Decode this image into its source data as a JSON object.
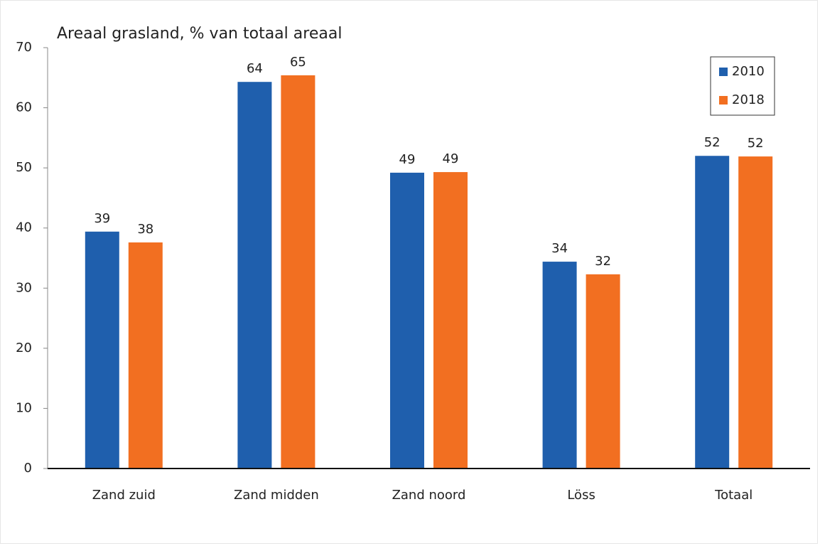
{
  "chart_data": {
    "type": "bar",
    "title": "Areaal grasland, % van totaal areaal",
    "categories": [
      "Zand zuid",
      "Zand midden",
      "Zand noord",
      "Löss",
      "Totaal"
    ],
    "series": [
      {
        "name": "2010",
        "color": "#1f5fad",
        "values": [
          39.4,
          64.3,
          49.2,
          34.4,
          52.0
        ],
        "value_labels": [
          "39",
          "64",
          "49",
          "34",
          "52"
        ]
      },
      {
        "name": "2018",
        "color": "#f26f21",
        "values": [
          37.6,
          65.4,
          49.3,
          32.3,
          51.9
        ],
        "value_labels": [
          "38",
          "65",
          "49",
          "32",
          "52"
        ]
      }
    ],
    "ylim": [
      0,
      70
    ],
    "yticks": [
      0,
      10,
      20,
      30,
      40,
      50,
      60,
      70
    ],
    "grid": false,
    "legend": "top-right"
  }
}
